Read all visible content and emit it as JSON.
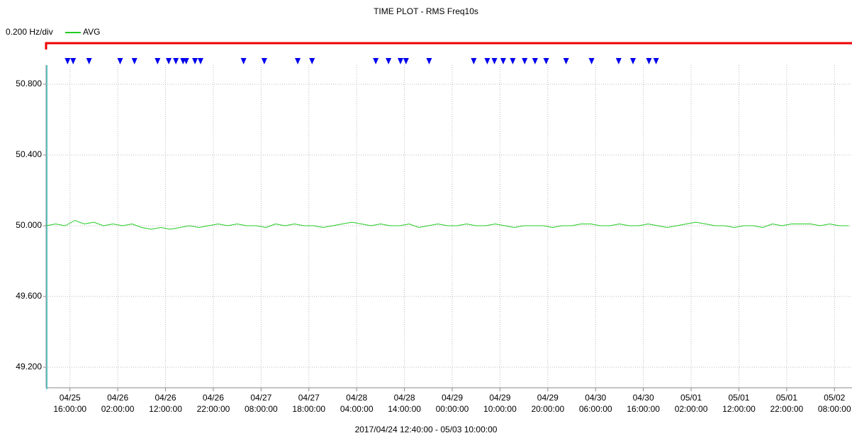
{
  "chart_data": {
    "type": "line",
    "title": "TIME PLOT - RMS  Freq10s",
    "scale_label": "0.200 Hz/div",
    "x_label": "2017/04/24 12:40:00 - 05/03 10:00:00",
    "grid": true,
    "xlim": [
      "2017-04-25T11:00",
      "2017-05-02T11:40"
    ],
    "ylim": [
      49.084,
      50.908
    ],
    "yticks": [
      {
        "value": 49.2,
        "label": "49.200"
      },
      {
        "value": 49.6,
        "label": "49.600"
      },
      {
        "value": 50.0,
        "label": "50.000"
      },
      {
        "value": 50.4,
        "label": "50.400"
      },
      {
        "value": 50.8,
        "label": "50.800"
      }
    ],
    "xticks": [
      {
        "value": "2017-04-25T16:00",
        "label": [
          "04/25",
          "16:00:00"
        ]
      },
      {
        "value": "2017-04-26T02:00",
        "label": [
          "04/26",
          "02:00:00"
        ]
      },
      {
        "value": "2017-04-26T12:00",
        "label": [
          "04/26",
          "12:00:00"
        ]
      },
      {
        "value": "2017-04-26T22:00",
        "label": [
          "04/26",
          "22:00:00"
        ]
      },
      {
        "value": "2017-04-27T08:00",
        "label": [
          "04/27",
          "08:00:00"
        ]
      },
      {
        "value": "2017-04-27T18:00",
        "label": [
          "04/27",
          "18:00:00"
        ]
      },
      {
        "value": "2017-04-28T04:00",
        "label": [
          "04/28",
          "04:00:00"
        ]
      },
      {
        "value": "2017-04-28T14:00",
        "label": [
          "04/28",
          "14:00:00"
        ]
      },
      {
        "value": "2017-04-29T00:00",
        "label": [
          "04/29",
          "00:00:00"
        ]
      },
      {
        "value": "2017-04-29T10:00",
        "label": [
          "04/29",
          "10:00:00"
        ]
      },
      {
        "value": "2017-04-29T20:00",
        "label": [
          "04/29",
          "20:00:00"
        ]
      },
      {
        "value": "2017-04-30T06:00",
        "label": [
          "04/30",
          "06:00:00"
        ]
      },
      {
        "value": "2017-04-30T16:00",
        "label": [
          "04/30",
          "16:00:00"
        ]
      },
      {
        "value": "2017-05-01T02:00",
        "label": [
          "05/01",
          "02:00:00"
        ]
      },
      {
        "value": "2017-05-01T12:00",
        "label": [
          "05/01",
          "12:00:00"
        ]
      },
      {
        "value": "2017-05-01T22:00",
        "label": [
          "05/01",
          "22:00:00"
        ]
      },
      {
        "value": "2017-05-02T08:00",
        "label": [
          "05/02",
          "08:00:00"
        ]
      }
    ],
    "event_color": "#0000ee",
    "events": [
      "2017-04-25T15:30",
      "2017-04-25T16:40",
      "2017-04-25T20:00",
      "2017-04-26T02:30",
      "2017-04-26T05:30",
      "2017-04-26T10:20",
      "2017-04-26T12:40",
      "2017-04-26T14:10",
      "2017-04-26T15:40",
      "2017-04-26T16:20",
      "2017-04-26T18:10",
      "2017-04-26T19:20",
      "2017-04-27T04:20",
      "2017-04-27T08:40",
      "2017-04-27T15:40",
      "2017-04-27T18:40",
      "2017-04-28T08:00",
      "2017-04-28T10:40",
      "2017-04-28T13:10",
      "2017-04-28T14:20",
      "2017-04-28T19:10",
      "2017-04-29T04:30",
      "2017-04-29T07:20",
      "2017-04-29T08:50",
      "2017-04-29T10:40",
      "2017-04-29T12:40",
      "2017-04-29T15:10",
      "2017-04-29T17:20",
      "2017-04-29T19:40",
      "2017-04-29T23:50",
      "2017-04-30T05:10",
      "2017-04-30T10:50",
      "2017-04-30T13:50",
      "2017-04-30T17:10",
      "2017-04-30T18:40"
    ],
    "x": [
      "2017-04-25T11:00",
      "2017-04-25T13:00",
      "2017-04-25T15:00",
      "2017-04-25T17:00",
      "2017-04-25T19:00",
      "2017-04-25T21:00",
      "2017-04-25T23:00",
      "2017-04-26T01:00",
      "2017-04-26T03:00",
      "2017-04-26T05:00",
      "2017-04-26T07:00",
      "2017-04-26T09:00",
      "2017-04-26T11:00",
      "2017-04-26T13:00",
      "2017-04-26T15:00",
      "2017-04-26T17:00",
      "2017-04-26T19:00",
      "2017-04-26T21:00",
      "2017-04-26T23:00",
      "2017-04-27T01:00",
      "2017-04-27T03:00",
      "2017-04-27T05:00",
      "2017-04-27T07:00",
      "2017-04-27T09:00",
      "2017-04-27T11:00",
      "2017-04-27T13:00",
      "2017-04-27T15:00",
      "2017-04-27T17:00",
      "2017-04-27T19:00",
      "2017-04-27T21:00",
      "2017-04-27T23:00",
      "2017-04-28T01:00",
      "2017-04-28T03:00",
      "2017-04-28T05:00",
      "2017-04-28T07:00",
      "2017-04-28T09:00",
      "2017-04-28T11:00",
      "2017-04-28T13:00",
      "2017-04-28T15:00",
      "2017-04-28T17:00",
      "2017-04-28T19:00",
      "2017-04-28T21:00",
      "2017-04-28T23:00",
      "2017-04-29T01:00",
      "2017-04-29T03:00",
      "2017-04-29T05:00",
      "2017-04-29T07:00",
      "2017-04-29T09:00",
      "2017-04-29T11:00",
      "2017-04-29T13:00",
      "2017-04-29T15:00",
      "2017-04-29T17:00",
      "2017-04-29T19:00",
      "2017-04-29T21:00",
      "2017-04-29T23:00",
      "2017-04-30T01:00",
      "2017-04-30T03:00",
      "2017-04-30T05:00",
      "2017-04-30T07:00",
      "2017-04-30T09:00",
      "2017-04-30T11:00",
      "2017-04-30T13:00",
      "2017-04-30T15:00",
      "2017-04-30T17:00",
      "2017-04-30T19:00",
      "2017-04-30T21:00",
      "2017-04-30T23:00",
      "2017-05-01T01:00",
      "2017-05-01T03:00",
      "2017-05-01T05:00",
      "2017-05-01T07:00",
      "2017-05-01T09:00",
      "2017-05-01T11:00",
      "2017-05-01T13:00",
      "2017-05-01T15:00",
      "2017-05-01T17:00",
      "2017-05-01T19:00",
      "2017-05-01T21:00",
      "2017-05-01T23:00",
      "2017-05-02T01:00",
      "2017-05-02T03:00",
      "2017-05-02T05:00",
      "2017-05-02T07:00",
      "2017-05-02T09:00",
      "2017-05-02T11:00"
    ],
    "series": [
      {
        "name": "AVG",
        "color": "#22cc22",
        "values": [
          50.0,
          50.01,
          50.0,
          50.03,
          50.01,
          50.02,
          50.0,
          50.01,
          50.0,
          50.01,
          49.99,
          49.98,
          49.99,
          49.98,
          49.99,
          50.0,
          49.99,
          50.0,
          50.01,
          50.0,
          50.01,
          50.0,
          50.0,
          49.99,
          50.01,
          50.0,
          50.01,
          50.0,
          50.0,
          49.99,
          50.0,
          50.01,
          50.02,
          50.01,
          50.0,
          50.01,
          50.0,
          50.0,
          50.01,
          49.99,
          50.0,
          50.01,
          50.0,
          50.0,
          50.01,
          50.0,
          50.0,
          50.01,
          50.0,
          49.99,
          50.0,
          50.0,
          50.0,
          49.99,
          50.0,
          50.0,
          50.01,
          50.01,
          50.0,
          50.0,
          50.01,
          50.0,
          50.0,
          50.01,
          50.0,
          49.99,
          50.0,
          50.01,
          50.02,
          50.01,
          50.0,
          50.0,
          49.99,
          50.0,
          50.0,
          49.99,
          50.01,
          50.0,
          50.01,
          50.01,
          50.01,
          50.0,
          50.01,
          50.0,
          50.0
        ]
      }
    ]
  }
}
